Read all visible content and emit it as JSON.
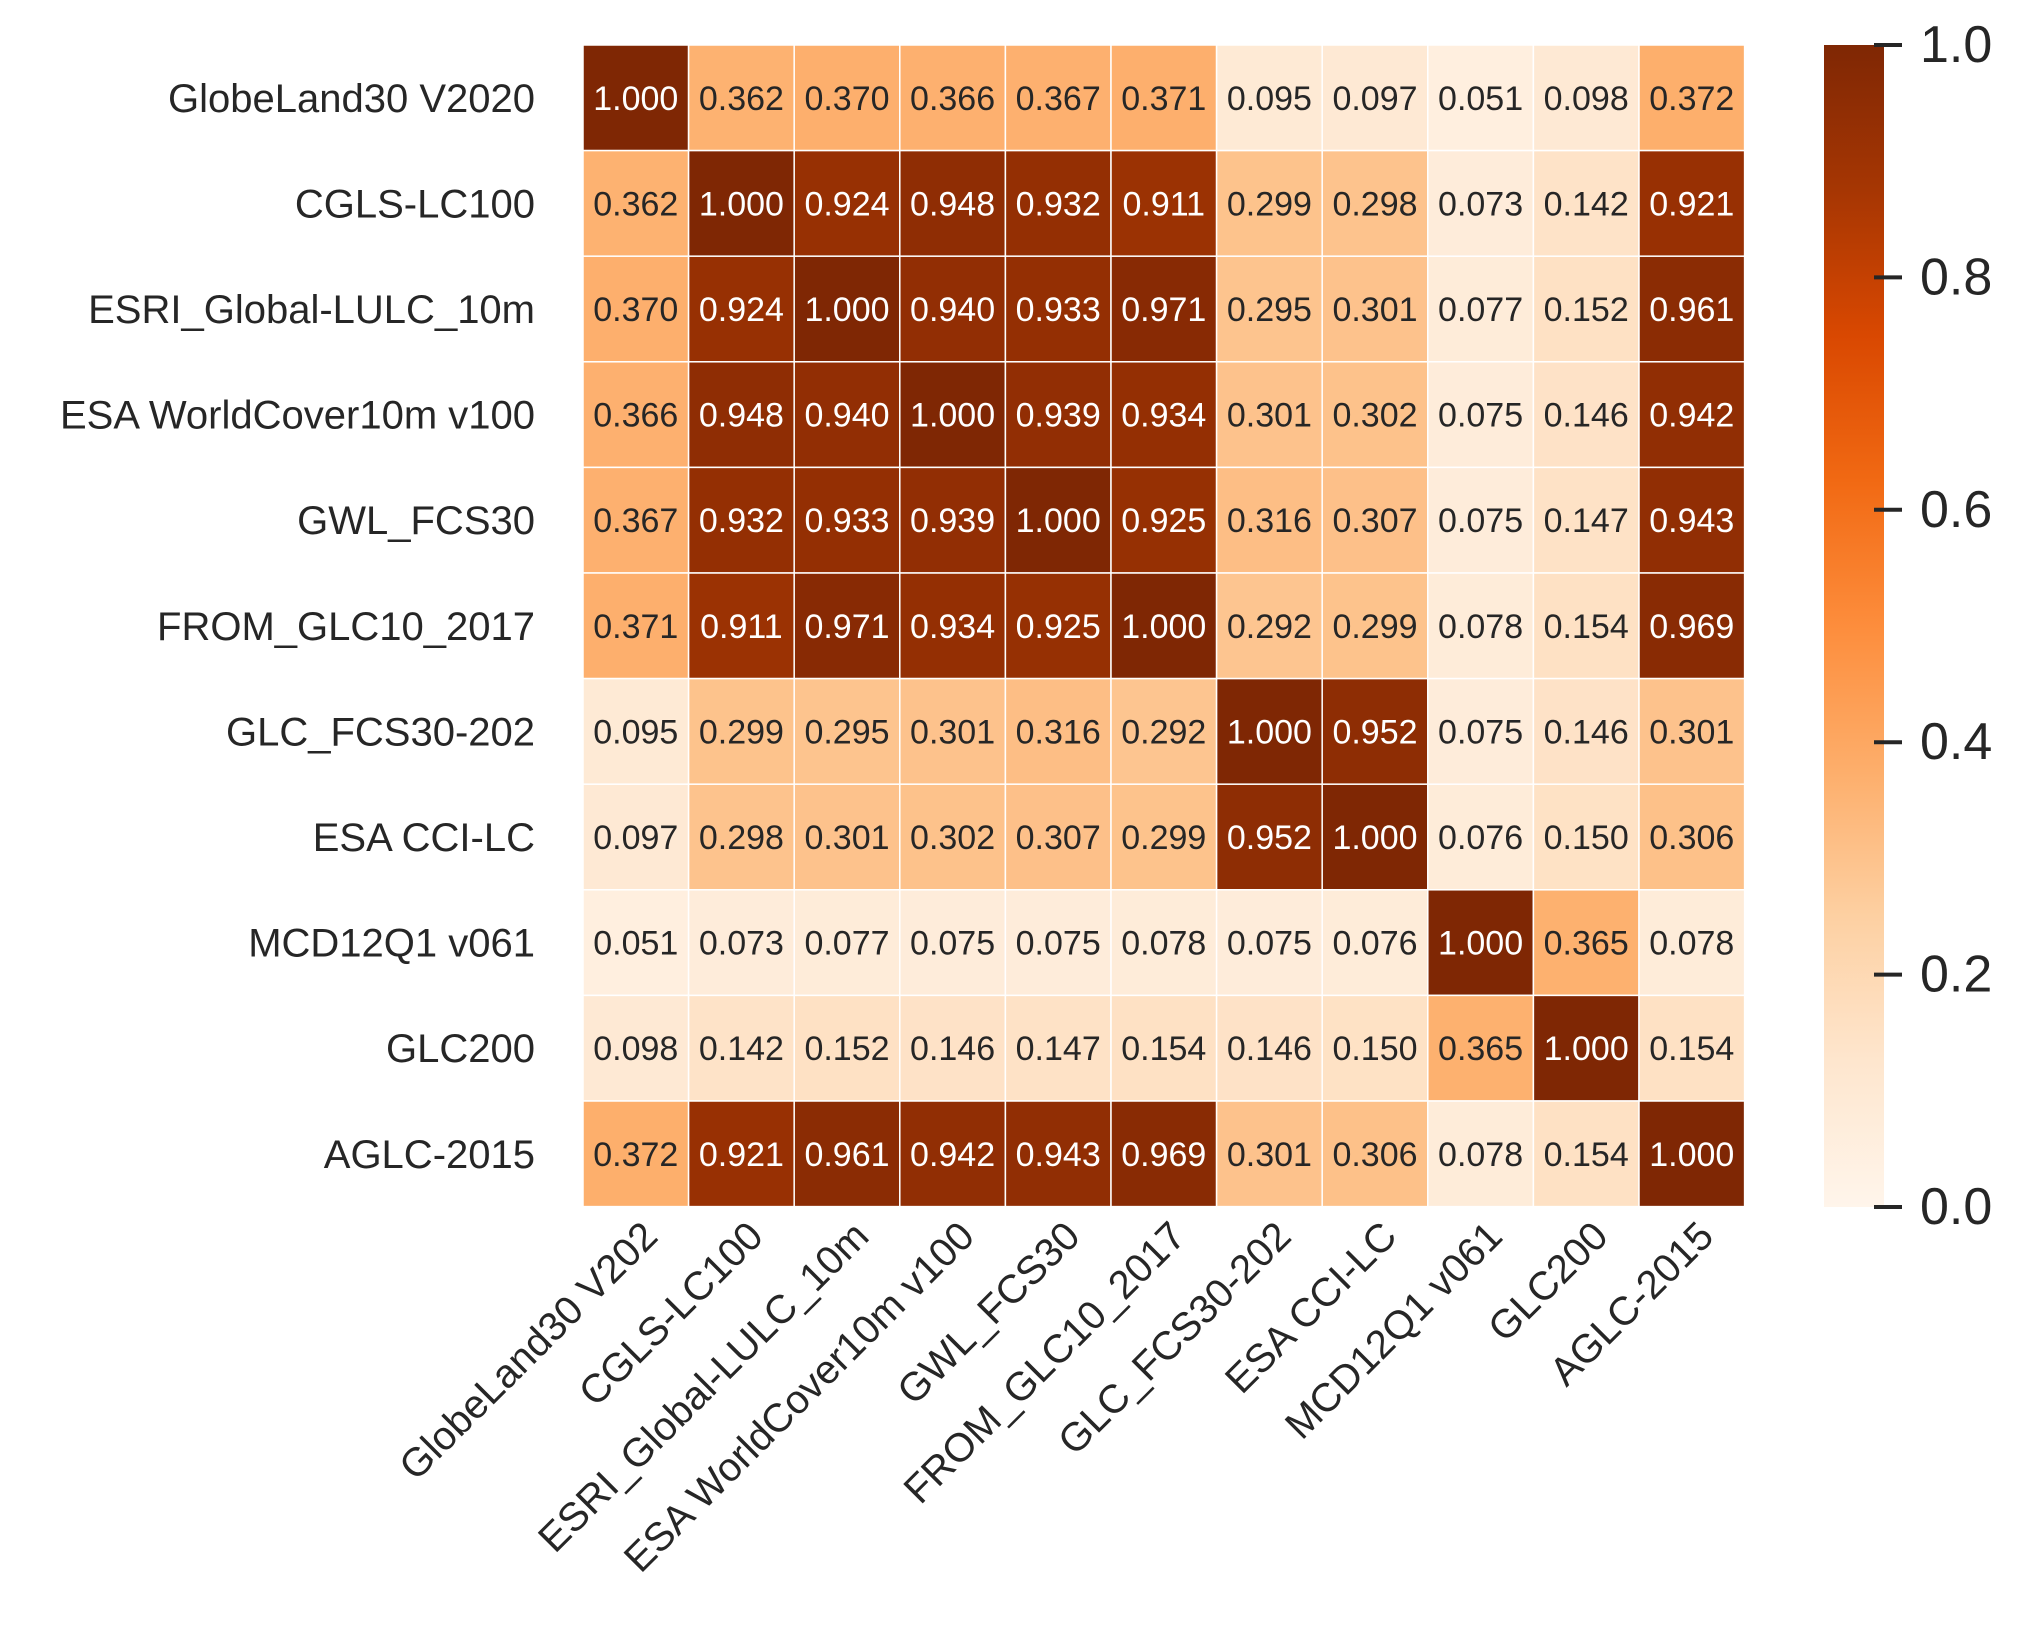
{
  "chart_data": {
    "type": "heatmap",
    "title": "",
    "row_labels": [
      "GlobeLand30 V2020",
      "CGLS-LC100",
      "ESRI_Global-LULC_10m",
      "ESA WorldCover10m v100",
      "GWL_FCS30",
      "FROM_GLC10_2017",
      "GLC_FCS30-202",
      "ESA CCI-LC",
      "MCD12Q1 v061",
      "GLC200",
      "AGLC-2015"
    ],
    "col_labels": [
      "GlobeLand30 V202",
      "CGLS-LC100",
      "ESRI_Global-LULC_10m",
      "ESA WorldCover10m v100",
      "GWL_FCS30",
      "FROM_GLC10_2017",
      "GLC_FCS30-202",
      "ESA CCI-LC",
      "MCD12Q1 v061",
      "GLC200",
      "AGLC-2015"
    ],
    "values": [
      [
        1.0,
        0.362,
        0.37,
        0.366,
        0.367,
        0.371,
        0.095,
        0.097,
        0.051,
        0.098,
        0.372
      ],
      [
        0.362,
        1.0,
        0.924,
        0.948,
        0.932,
        0.911,
        0.299,
        0.298,
        0.073,
        0.142,
        0.921
      ],
      [
        0.37,
        0.924,
        1.0,
        0.94,
        0.933,
        0.971,
        0.295,
        0.301,
        0.077,
        0.152,
        0.961
      ],
      [
        0.366,
        0.948,
        0.94,
        1.0,
        0.939,
        0.934,
        0.301,
        0.302,
        0.075,
        0.146,
        0.942
      ],
      [
        0.367,
        0.932,
        0.933,
        0.939,
        1.0,
        0.925,
        0.316,
        0.307,
        0.075,
        0.147,
        0.943
      ],
      [
        0.371,
        0.911,
        0.971,
        0.934,
        0.925,
        1.0,
        0.292,
        0.299,
        0.078,
        0.154,
        0.969
      ],
      [
        0.095,
        0.299,
        0.295,
        0.301,
        0.316,
        0.292,
        1.0,
        0.952,
        0.075,
        0.146,
        0.301
      ],
      [
        0.097,
        0.298,
        0.301,
        0.302,
        0.307,
        0.299,
        0.952,
        1.0,
        0.076,
        0.15,
        0.306
      ],
      [
        0.051,
        0.073,
        0.077,
        0.075,
        0.075,
        0.078,
        0.075,
        0.076,
        1.0,
        0.365,
        0.078
      ],
      [
        0.098,
        0.142,
        0.152,
        0.146,
        0.147,
        0.154,
        0.146,
        0.15,
        0.365,
        1.0,
        0.154
      ],
      [
        0.372,
        0.921,
        0.961,
        0.942,
        0.943,
        0.969,
        0.301,
        0.306,
        0.078,
        0.154,
        1.0
      ]
    ],
    "value_format": "0.000",
    "colormap": "Oranges",
    "colormap_stops": [
      "#fff5eb",
      "#fee6ce",
      "#fdd0a2",
      "#fdae6b",
      "#fd8d3c",
      "#f16913",
      "#d94801",
      "#a63603",
      "#7f2704"
    ],
    "vmin": 0.0,
    "vmax": 1.0,
    "colorbar_ticks": [
      "0.0",
      "0.2",
      "0.4",
      "0.6",
      "0.8",
      "1.0"
    ],
    "colorbar_tick_values": [
      0.0,
      0.2,
      0.4,
      0.6,
      0.8,
      1.0
    ],
    "text_color_light": "#ffffff",
    "text_color_dark": "#262626",
    "grid_line_color": "#ffffff"
  }
}
